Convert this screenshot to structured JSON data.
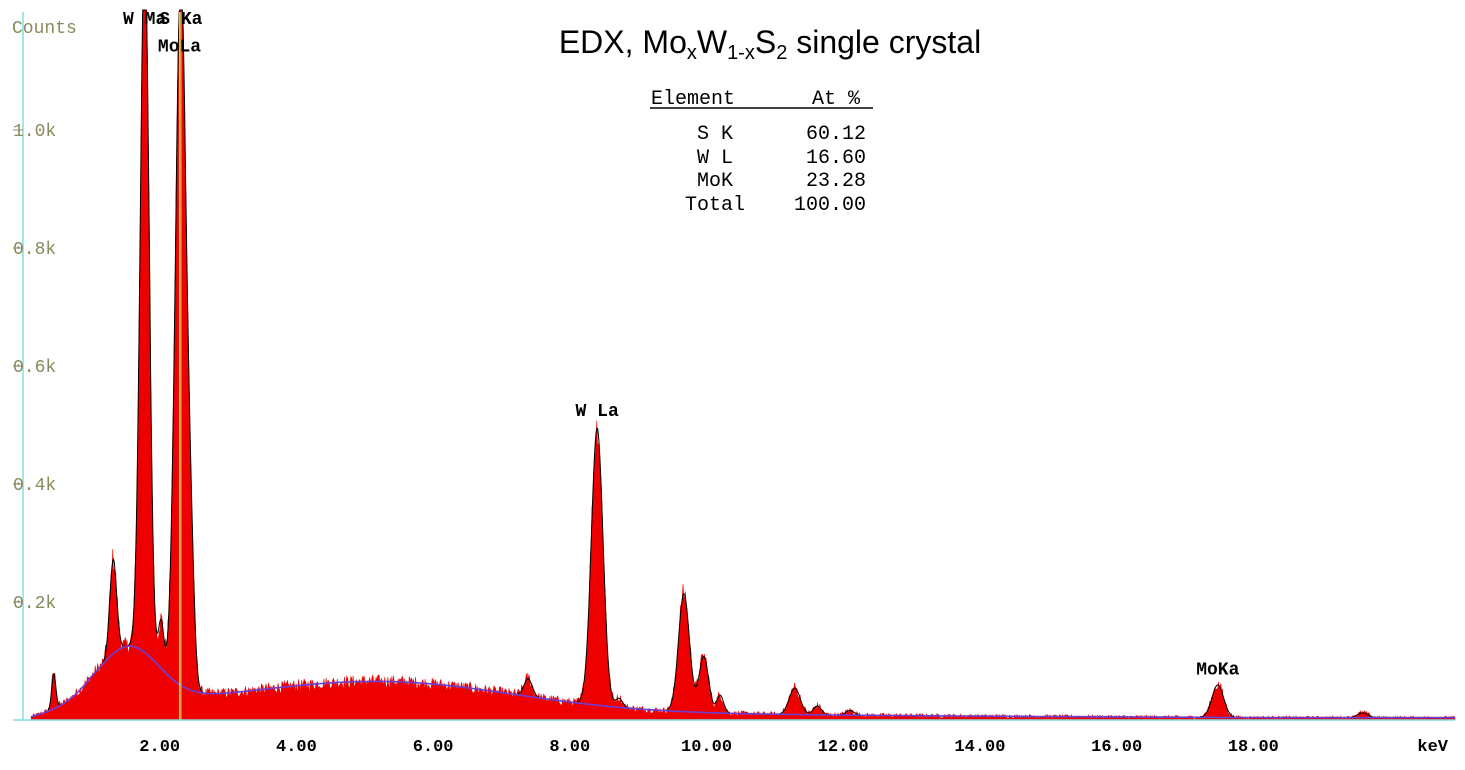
{
  "chart_data": {
    "type": "area",
    "title_parts": {
      "a": "EDX, Mo",
      "x1": "x",
      "b": "W",
      "sub1": "1-x",
      "c": "S",
      "sub2": "2",
      "d": " single crystal"
    },
    "ylabel": "Counts",
    "xlabel": "keV",
    "xlim": [
      0,
      20.95
    ],
    "ylim": [
      0,
      1200
    ],
    "x_ticks": [
      {
        "v": 2,
        "label": "2.00"
      },
      {
        "v": 4,
        "label": "4.00"
      },
      {
        "v": 6,
        "label": "6.00"
      },
      {
        "v": 8,
        "label": "8.00"
      },
      {
        "v": 10,
        "label": "10.00"
      },
      {
        "v": 12,
        "label": "12.00"
      },
      {
        "v": 14,
        "label": "14.00"
      },
      {
        "v": 16,
        "label": "16.00"
      },
      {
        "v": 18,
        "label": "18.00"
      }
    ],
    "y_ticks": [
      {
        "v": 200,
        "label": "0.2k"
      },
      {
        "v": 400,
        "label": "0.4k"
      },
      {
        "v": 600,
        "label": "0.6k"
      },
      {
        "v": 800,
        "label": "0.8k"
      },
      {
        "v": 1000,
        "label": "1.0k"
      }
    ],
    "fill_color": "#ee0000",
    "outline_color": "#000000",
    "background_color": "#6b3fd6",
    "marker_color": "#d8c84a",
    "axis_color": "#7fe0e0",
    "peaks": [
      {
        "x": 0.45,
        "h": 60,
        "w": 0.03
      },
      {
        "x": 1.32,
        "h": 160,
        "w": 0.05
      },
      {
        "x": 1.78,
        "h": 1200,
        "w": 0.065
      },
      {
        "x": 2.02,
        "h": 80,
        "w": 0.04
      },
      {
        "x": 2.31,
        "h": 1200,
        "w": 0.08
      },
      {
        "x": 2.46,
        "h": 150,
        "w": 0.05
      },
      {
        "x": 7.39,
        "h": 30,
        "w": 0.06
      },
      {
        "x": 8.4,
        "h": 470,
        "w": 0.085
      },
      {
        "x": 8.72,
        "h": 15,
        "w": 0.05
      },
      {
        "x": 9.67,
        "h": 200,
        "w": 0.08
      },
      {
        "x": 9.96,
        "h": 95,
        "w": 0.07
      },
      {
        "x": 10.2,
        "h": 30,
        "w": 0.05
      },
      {
        "x": 11.29,
        "h": 45,
        "w": 0.08
      },
      {
        "x": 11.62,
        "h": 15,
        "w": 0.06
      },
      {
        "x": 12.1,
        "h": 8,
        "w": 0.06
      },
      {
        "x": 17.48,
        "h": 55,
        "w": 0.085
      },
      {
        "x": 19.6,
        "h": 8,
        "w": 0.08
      }
    ],
    "peak_labels": [
      {
        "text": "W Ma",
        "x": 1.78,
        "y": 1180
      },
      {
        "text": "S Ka",
        "x": 2.31,
        "y": 1180
      },
      {
        "text": "MoLa",
        "x": 2.29,
        "y": 1133
      },
      {
        "text": "W La",
        "x": 8.4,
        "y": 515
      },
      {
        "text": "MoKa",
        "x": 17.48,
        "y": 77
      }
    ],
    "markers": [
      2.29,
      2.31
    ],
    "table": {
      "header": [
        "Element",
        "At %"
      ],
      "rows": [
        [
          "S K",
          "60.12"
        ],
        [
          "W L",
          "16.60"
        ],
        [
          "MoK",
          "23.28"
        ],
        [
          "Total",
          "100.00"
        ]
      ]
    }
  }
}
